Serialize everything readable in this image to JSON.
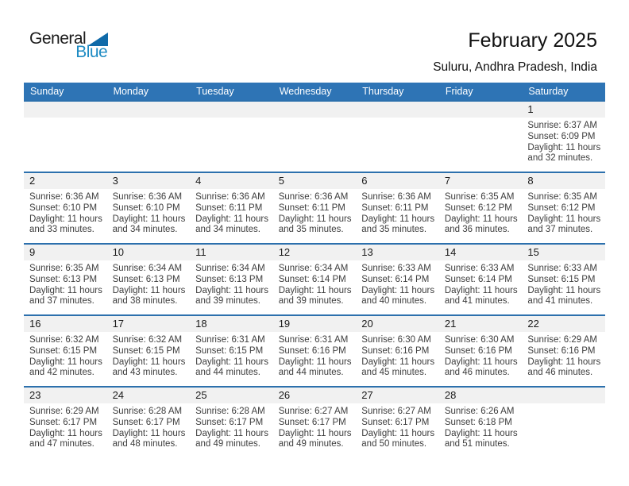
{
  "logo": {
    "part1": "General",
    "part2": "Blue"
  },
  "title": "February 2025",
  "subtitle": "Suluru, Andhra Pradesh, India",
  "colors": {
    "header_bg": "#2e74b5",
    "row_line": "#2c70ad",
    "band_bg": "#f1f1f1",
    "logo_blue": "#1e8bc3",
    "logo_triangle": "#0f6aa9",
    "header_text": "#ffffff",
    "detail_text": "#3d3d3d"
  },
  "day_headers": [
    "Sunday",
    "Monday",
    "Tuesday",
    "Wednesday",
    "Thursday",
    "Friday",
    "Saturday"
  ],
  "weeks": [
    [
      null,
      null,
      null,
      null,
      null,
      null,
      {
        "day": "1",
        "lines": [
          "Sunrise: 6:37 AM",
          "Sunset: 6:09 PM",
          "Daylight: 11 hours",
          "and 32 minutes."
        ]
      }
    ],
    [
      {
        "day": "2",
        "lines": [
          "Sunrise: 6:36 AM",
          "Sunset: 6:10 PM",
          "Daylight: 11 hours",
          "and 33 minutes."
        ]
      },
      {
        "day": "3",
        "lines": [
          "Sunrise: 6:36 AM",
          "Sunset: 6:10 PM",
          "Daylight: 11 hours",
          "and 34 minutes."
        ]
      },
      {
        "day": "4",
        "lines": [
          "Sunrise: 6:36 AM",
          "Sunset: 6:11 PM",
          "Daylight: 11 hours",
          "and 34 minutes."
        ]
      },
      {
        "day": "5",
        "lines": [
          "Sunrise: 6:36 AM",
          "Sunset: 6:11 PM",
          "Daylight: 11 hours",
          "and 35 minutes."
        ]
      },
      {
        "day": "6",
        "lines": [
          "Sunrise: 6:36 AM",
          "Sunset: 6:11 PM",
          "Daylight: 11 hours",
          "and 35 minutes."
        ]
      },
      {
        "day": "7",
        "lines": [
          "Sunrise: 6:35 AM",
          "Sunset: 6:12 PM",
          "Daylight: 11 hours",
          "and 36 minutes."
        ]
      },
      {
        "day": "8",
        "lines": [
          "Sunrise: 6:35 AM",
          "Sunset: 6:12 PM",
          "Daylight: 11 hours",
          "and 37 minutes."
        ]
      }
    ],
    [
      {
        "day": "9",
        "lines": [
          "Sunrise: 6:35 AM",
          "Sunset: 6:13 PM",
          "Daylight: 11 hours",
          "and 37 minutes."
        ]
      },
      {
        "day": "10",
        "lines": [
          "Sunrise: 6:34 AM",
          "Sunset: 6:13 PM",
          "Daylight: 11 hours",
          "and 38 minutes."
        ]
      },
      {
        "day": "11",
        "lines": [
          "Sunrise: 6:34 AM",
          "Sunset: 6:13 PM",
          "Daylight: 11 hours",
          "and 39 minutes."
        ]
      },
      {
        "day": "12",
        "lines": [
          "Sunrise: 6:34 AM",
          "Sunset: 6:14 PM",
          "Daylight: 11 hours",
          "and 39 minutes."
        ]
      },
      {
        "day": "13",
        "lines": [
          "Sunrise: 6:33 AM",
          "Sunset: 6:14 PM",
          "Daylight: 11 hours",
          "and 40 minutes."
        ]
      },
      {
        "day": "14",
        "lines": [
          "Sunrise: 6:33 AM",
          "Sunset: 6:14 PM",
          "Daylight: 11 hours",
          "and 41 minutes."
        ]
      },
      {
        "day": "15",
        "lines": [
          "Sunrise: 6:33 AM",
          "Sunset: 6:15 PM",
          "Daylight: 11 hours",
          "and 41 minutes."
        ]
      }
    ],
    [
      {
        "day": "16",
        "lines": [
          "Sunrise: 6:32 AM",
          "Sunset: 6:15 PM",
          "Daylight: 11 hours",
          "and 42 minutes."
        ]
      },
      {
        "day": "17",
        "lines": [
          "Sunrise: 6:32 AM",
          "Sunset: 6:15 PM",
          "Daylight: 11 hours",
          "and 43 minutes."
        ]
      },
      {
        "day": "18",
        "lines": [
          "Sunrise: 6:31 AM",
          "Sunset: 6:15 PM",
          "Daylight: 11 hours",
          "and 44 minutes."
        ]
      },
      {
        "day": "19",
        "lines": [
          "Sunrise: 6:31 AM",
          "Sunset: 6:16 PM",
          "Daylight: 11 hours",
          "and 44 minutes."
        ]
      },
      {
        "day": "20",
        "lines": [
          "Sunrise: 6:30 AM",
          "Sunset: 6:16 PM",
          "Daylight: 11 hours",
          "and 45 minutes."
        ]
      },
      {
        "day": "21",
        "lines": [
          "Sunrise: 6:30 AM",
          "Sunset: 6:16 PM",
          "Daylight: 11 hours",
          "and 46 minutes."
        ]
      },
      {
        "day": "22",
        "lines": [
          "Sunrise: 6:29 AM",
          "Sunset: 6:16 PM",
          "Daylight: 11 hours",
          "and 46 minutes."
        ]
      }
    ],
    [
      {
        "day": "23",
        "lines": [
          "Sunrise: 6:29 AM",
          "Sunset: 6:17 PM",
          "Daylight: 11 hours",
          "and 47 minutes."
        ]
      },
      {
        "day": "24",
        "lines": [
          "Sunrise: 6:28 AM",
          "Sunset: 6:17 PM",
          "Daylight: 11 hours",
          "and 48 minutes."
        ]
      },
      {
        "day": "25",
        "lines": [
          "Sunrise: 6:28 AM",
          "Sunset: 6:17 PM",
          "Daylight: 11 hours",
          "and 49 minutes."
        ]
      },
      {
        "day": "26",
        "lines": [
          "Sunrise: 6:27 AM",
          "Sunset: 6:17 PM",
          "Daylight: 11 hours",
          "and 49 minutes."
        ]
      },
      {
        "day": "27",
        "lines": [
          "Sunrise: 6:27 AM",
          "Sunset: 6:17 PM",
          "Daylight: 11 hours",
          "and 50 minutes."
        ]
      },
      {
        "day": "28",
        "lines": [
          "Sunrise: 6:26 AM",
          "Sunset: 6:18 PM",
          "Daylight: 11 hours",
          "and 51 minutes."
        ]
      },
      null
    ]
  ]
}
